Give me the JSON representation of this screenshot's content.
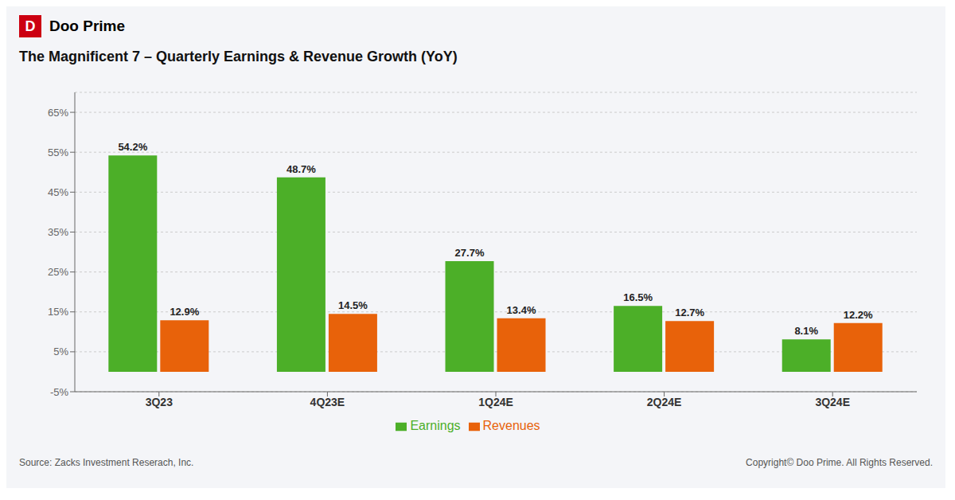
{
  "chart_data": {
    "type": "bar",
    "title": "The Magnificent 7 – Quarterly Earnings & Revenue Growth (YoY)",
    "categories": [
      "3Q23",
      "4Q23E",
      "1Q24E",
      "2Q24E",
      "3Q24E"
    ],
    "series": [
      {
        "name": "Earnings",
        "color": "#4caf28",
        "values": [
          54.2,
          48.7,
          27.7,
          16.5,
          8.1
        ],
        "value_labels": [
          "54.2%",
          "48.7%",
          "27.7%",
          "16.5%",
          "8.1%"
        ]
      },
      {
        "name": "Revenues",
        "color": "#e8620a",
        "values": [
          12.9,
          14.5,
          13.4,
          12.7,
          12.2
        ],
        "value_labels": [
          "12.9%",
          "14.5%",
          "13.4%",
          "12.7%",
          "12.2%"
        ]
      }
    ],
    "ylim": [
      -5,
      70
    ],
    "yticks": [
      {
        "value": -5,
        "label": "-5%"
      },
      {
        "value": 5,
        "label": "5%"
      },
      {
        "value": 15,
        "label": "15%"
      },
      {
        "value": 25,
        "label": "25%"
      },
      {
        "value": 35,
        "label": "35%"
      },
      {
        "value": 45,
        "label": "45%"
      },
      {
        "value": 55,
        "label": "55%"
      },
      {
        "value": 65,
        "label": "65%"
      }
    ],
    "grid": true,
    "legend": "bottom",
    "data_labels": true,
    "annotations": [
      "D",
      "Doo Prime",
      "Source: Zacks Investment Reserach, Inc.",
      "Copyright© Doo Prime. All Rights Reserved."
    ]
  }
}
